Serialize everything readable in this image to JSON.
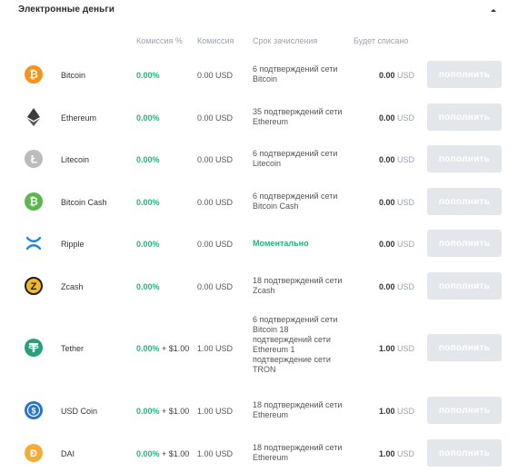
{
  "section": {
    "title": "Электронные деньги"
  },
  "columns": {
    "fee_pct": "Комиссия %",
    "fee": "Комиссия",
    "time": "Срок зачисления",
    "charge": "Будет списано"
  },
  "colors": {
    "accent_green": "#27b27a",
    "button_disabled": "#e3e7ec",
    "muted_text": "#9aa3ad"
  },
  "rows": [
    {
      "name": "Bitcoin",
      "icon": "bitcoin-icon",
      "fee_pct": "0.00%",
      "fee_extra": "",
      "fee": "0.00 USD",
      "time": "6 подтверждений сети Bitcoin",
      "charge_amount": "0.00",
      "charge_currency": "USD",
      "button": "пополнить"
    },
    {
      "name": "Ethereum",
      "icon": "ethereum-icon",
      "fee_pct": "0.00%",
      "fee_extra": "",
      "fee": "0.00 USD",
      "time": "35 подтверждений сети Ethereum",
      "charge_amount": "0.00",
      "charge_currency": "USD",
      "button": "пополнить"
    },
    {
      "name": "Litecoin",
      "icon": "litecoin-icon",
      "fee_pct": "0.00%",
      "fee_extra": "",
      "fee": "0.00 USD",
      "time": "6 подтверждений сети Litecoin",
      "charge_amount": "0.00",
      "charge_currency": "USD",
      "button": "пополнить"
    },
    {
      "name": "Bitcoin Cash",
      "icon": "bitcoin-cash-icon",
      "fee_pct": "0.00%",
      "fee_extra": "",
      "fee": "0.00 USD",
      "time": "6 подтверждений сети Bitcoin Cash",
      "charge_amount": "0.00",
      "charge_currency": "USD",
      "button": "пополнить"
    },
    {
      "name": "Ripple",
      "icon": "ripple-icon",
      "fee_pct": "0.00%",
      "fee_extra": "",
      "fee": "0.00 USD",
      "time": "Моментально",
      "charge_amount": "0.00",
      "charge_currency": "USD",
      "button": "пополнить"
    },
    {
      "name": "Zcash",
      "icon": "zcash-icon",
      "fee_pct": "0.00%",
      "fee_extra": "",
      "fee": "0.00 USD",
      "time": "18 подтверждений сети Zcash",
      "charge_amount": "0.00",
      "charge_currency": "USD",
      "button": "пополнить"
    },
    {
      "name": "Tether",
      "icon": "tether-icon",
      "fee_pct": "0.00%",
      "fee_extra": " + $1.00",
      "fee": "1.00 USD",
      "time": "6 подтверждений сети Bitcoin 18 подтверждений сети Ethereum 1 подтверждение сети TRON",
      "charge_amount": "1.00",
      "charge_currency": "USD",
      "button": "пополнить"
    },
    {
      "name": "USD Coin",
      "icon": "usd-coin-icon",
      "fee_pct": "0.00%",
      "fee_extra": " + $1.00",
      "fee": "1.00 USD",
      "time": "18 подтверждений сети Ethereum",
      "charge_amount": "1.00",
      "charge_currency": "USD",
      "button": "пополнить"
    },
    {
      "name": "DAI",
      "icon": "dai-icon",
      "fee_pct": "0.00%",
      "fee_extra": " + $1.00",
      "fee": "1.00 USD",
      "time": "18 подтверждений сети Ethereum",
      "charge_amount": "1.00",
      "charge_currency": "USD",
      "button": "пополнить"
    }
  ]
}
